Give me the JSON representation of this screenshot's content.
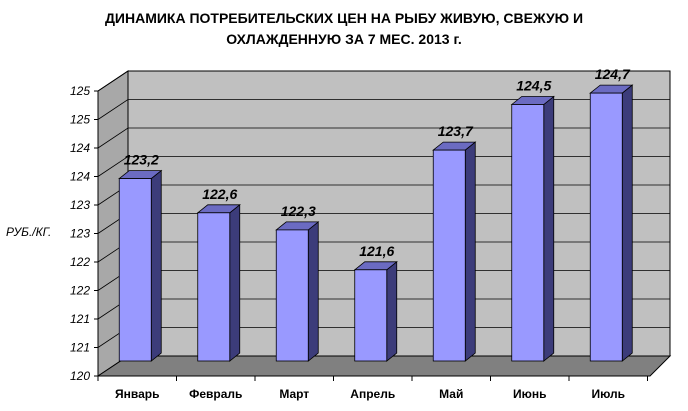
{
  "chart_data": {
    "type": "bar",
    "title_lines": [
      "ДИНАМИКА ПОТРЕБИТЕЛЬСКИХ ЦЕН НА РЫБУ ЖИВУЮ, СВЕЖУЮ И",
      "ОХЛАЖДЕННУЮ ЗА 7 МЕС. 2013 г."
    ],
    "ylabel": "РУБ./КГ.",
    "xlabel": "",
    "categories": [
      "Январь",
      "Февраль",
      "Март",
      "Апрель",
      "Май",
      "Июнь",
      "Июль"
    ],
    "values": [
      123.2,
      122.6,
      122.3,
      121.6,
      123.7,
      124.5,
      124.7
    ],
    "value_labels": [
      "123,2",
      "122,6",
      "122,3",
      "121,6",
      "123,7",
      "124,5",
      "124,7"
    ],
    "ylim": [
      120,
      125
    ],
    "ytick_labels": [
      "120",
      "121",
      "121",
      "122",
      "122",
      "123",
      "123",
      "124",
      "124",
      "125",
      "125"
    ],
    "grid": true,
    "legend": "none",
    "colors": {
      "bar_front": "#9999ff",
      "bar_side": "#3c3c7a",
      "bar_top": "#6b6bc2",
      "wall": "#c0c0c0",
      "side_wall": "#a8a8a8",
      "floor": "#808080"
    }
  }
}
